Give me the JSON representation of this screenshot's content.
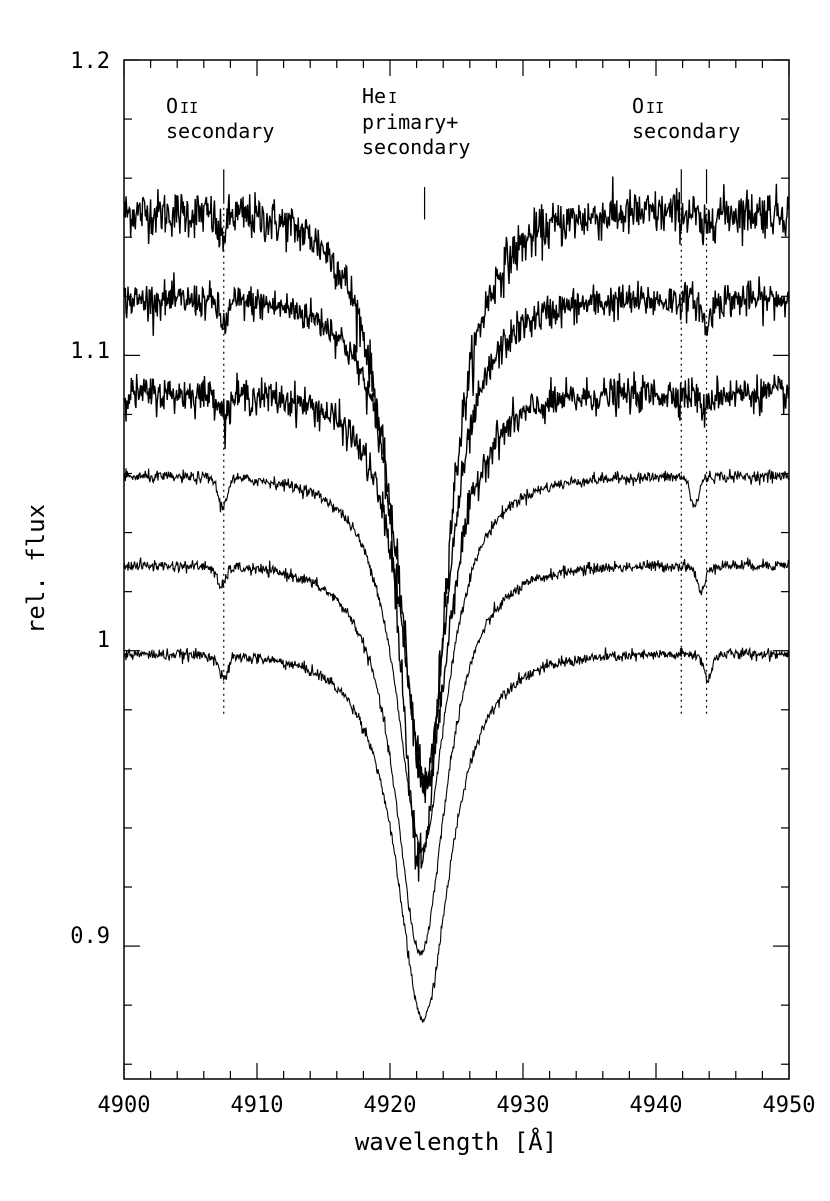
{
  "chart_data": {
    "type": "line",
    "xlabel": "wavelength [Å]",
    "ylabel": "rel. flux",
    "xlim": [
      4900,
      4950
    ],
    "ylim": [
      0.855,
      1.2
    ],
    "x_ticks": [
      4900,
      4910,
      4920,
      4930,
      4940,
      4950
    ],
    "x_tick_labels": [
      "4900",
      "4910",
      "4920",
      "4930",
      "4940",
      "4950"
    ],
    "y_ticks": [
      0.9,
      1.0,
      1.1,
      1.2
    ],
    "y_tick_labels": [
      "0.9",
      "1",
      "1.1",
      "1.2"
    ],
    "grid": false,
    "line_color": "#000000",
    "annotations": [
      {
        "id": "oii-left",
        "element": "O",
        "ion": "II",
        "label": "secondary",
        "x": 4907.5,
        "line_style": "dotted"
      },
      {
        "id": "hei",
        "element": "He",
        "ion": "I",
        "label1": "primary+",
        "label2": "secondary",
        "x": 4922.6,
        "line_style": "none"
      },
      {
        "id": "oii-right",
        "element": "O",
        "ion": "II",
        "label": "secondary",
        "x": [
          4941.9,
          4943.8
        ],
        "line_style": "dotted"
      }
    ],
    "series": [
      {
        "continuum": 1.15,
        "center": 4922.3,
        "depth": 0.232,
        "width": 2.3,
        "noise": 0.004,
        "o2_left": [
          4907.3,
          0.008
        ],
        "o2_right": [
          4943.6,
          0.007
        ]
      },
      {
        "continuum": 1.12,
        "center": 4922.6,
        "depth": 0.172,
        "width": 2.3,
        "noise": 0.003,
        "o2_left": [
          4907.5,
          0.008
        ],
        "o2_right": [
          4943.8,
          0.009
        ]
      },
      {
        "continuum": 1.088,
        "center": 4922.7,
        "depth": 0.138,
        "width": 2.3,
        "noise": 0.003,
        "o2_left": [
          4907.6,
          0.007
        ],
        "o2_right": [
          4943.7,
          0.006
        ]
      },
      {
        "continuum": 1.06,
        "center": 4922.4,
        "depth": 0.132,
        "width": 2.4,
        "noise": 0.001,
        "o2_left": [
          4907.4,
          0.01
        ],
        "o2_right": [
          4942.9,
          0.01
        ]
      },
      {
        "continuum": 1.03,
        "center": 4922.3,
        "depth": 0.138,
        "width": 2.4,
        "noise": 0.001,
        "o2_left": [
          4907.3,
          0.007
        ],
        "o2_right": [
          4943.4,
          0.009
        ]
      },
      {
        "continuum": 1.0,
        "center": 4922.5,
        "depth": 0.13,
        "width": 2.5,
        "noise": 0.001,
        "o2_left": [
          4907.5,
          0.008
        ],
        "o2_right": [
          4943.9,
          0.008
        ]
      }
    ]
  }
}
